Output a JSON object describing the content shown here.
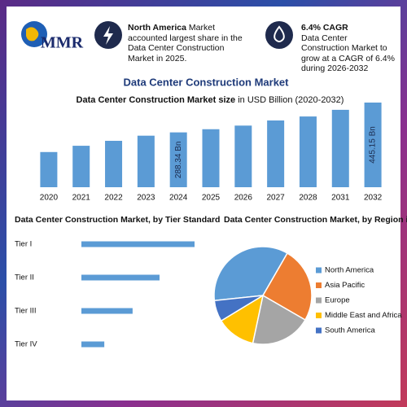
{
  "header": {
    "logo": "MMR",
    "cards": [
      {
        "highlight": "North America",
        "text": "Market accounted largest share in the Data Center Construction Market in 2025."
      },
      {
        "title": "6.4% CAGR",
        "text": "Data Center Construction Market to grow at a CAGR of 6.4% during 2026-2032"
      }
    ]
  },
  "title": "Data Center Construction Market",
  "chart_data": [
    {
      "type": "bar",
      "title": "Data Center Construction Market size",
      "subtitle": "in USD Billion (2020-2032)",
      "categories": [
        "2020",
        "2021",
        "2022",
        "2023",
        "2024",
        "2025",
        "2026",
        "2027",
        "2028",
        "2031",
        "2032"
      ],
      "values": [
        185,
        218,
        244,
        271,
        288.34,
        305,
        324,
        351,
        372,
        407,
        445.15
      ],
      "value_labels": [
        null,
        null,
        null,
        null,
        "288.34 Bn",
        null,
        null,
        null,
        null,
        null,
        "445.15 Bn"
      ],
      "color": "#5b9bd5"
    },
    {
      "type": "hbar",
      "title": "Data Center Construction Market, by Tier Standard",
      "categories": [
        "Tier I",
        "Tier II",
        "Tier III",
        "Tier IV"
      ],
      "values": [
        42,
        29,
        19,
        8.5
      ],
      "color": "#5b9bd5"
    },
    {
      "type": "pie",
      "title": "Data Center Construction Market, by Region in",
      "categories": [
        "North America",
        "Asia Pacific",
        "Europe",
        "Middle East and Africa",
        "South America"
      ],
      "values": [
        35,
        25,
        20,
        13,
        7
      ],
      "colors": [
        "#5b9bd5",
        "#ed7d31",
        "#a5a5a5",
        "#ffc000",
        "#4472c4"
      ]
    }
  ]
}
